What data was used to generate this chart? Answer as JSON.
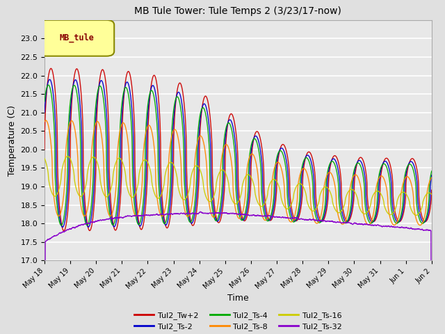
{
  "title": "MB Tule Tower: Tule Temps 2 (3/23/17-now)",
  "xlabel": "Time",
  "ylabel": "Temperature (C)",
  "ylim": [
    17.0,
    23.5
  ],
  "yticks": [
    17.0,
    17.5,
    18.0,
    18.5,
    19.0,
    19.5,
    20.0,
    20.5,
    21.0,
    21.5,
    22.0,
    22.5,
    23.0
  ],
  "background_color": "#e0e0e0",
  "plot_bg_color": "#e8e8e8",
  "grid_color": "#ffffff",
  "legend_label": "MB_tule",
  "series": [
    {
      "name": "Tul2_Tw+2",
      "color": "#cc0000"
    },
    {
      "name": "Tul2_Ts-2",
      "color": "#0000cc"
    },
    {
      "name": "Tul2_Ts-4",
      "color": "#00aa00"
    },
    {
      "name": "Tul2_Ts-8",
      "color": "#ff8800"
    },
    {
      "name": "Tul2_Ts-16",
      "color": "#cccc00"
    },
    {
      "name": "Tul2_Ts-32",
      "color": "#8800cc"
    }
  ],
  "xtick_labels": [
    "May 18",
    "May 19",
    "May 20",
    "May 21",
    "May 22",
    "May 23",
    "May 24",
    "May 25",
    "May 26",
    "May 27",
    "May 28",
    "May 29",
    "May 30",
    "May 31",
    "Jun 1",
    "Jun 2"
  ],
  "xtick_positions": [
    0,
    1,
    2,
    3,
    4,
    5,
    6,
    7,
    8,
    9,
    10,
    11,
    12,
    13,
    14,
    15
  ]
}
